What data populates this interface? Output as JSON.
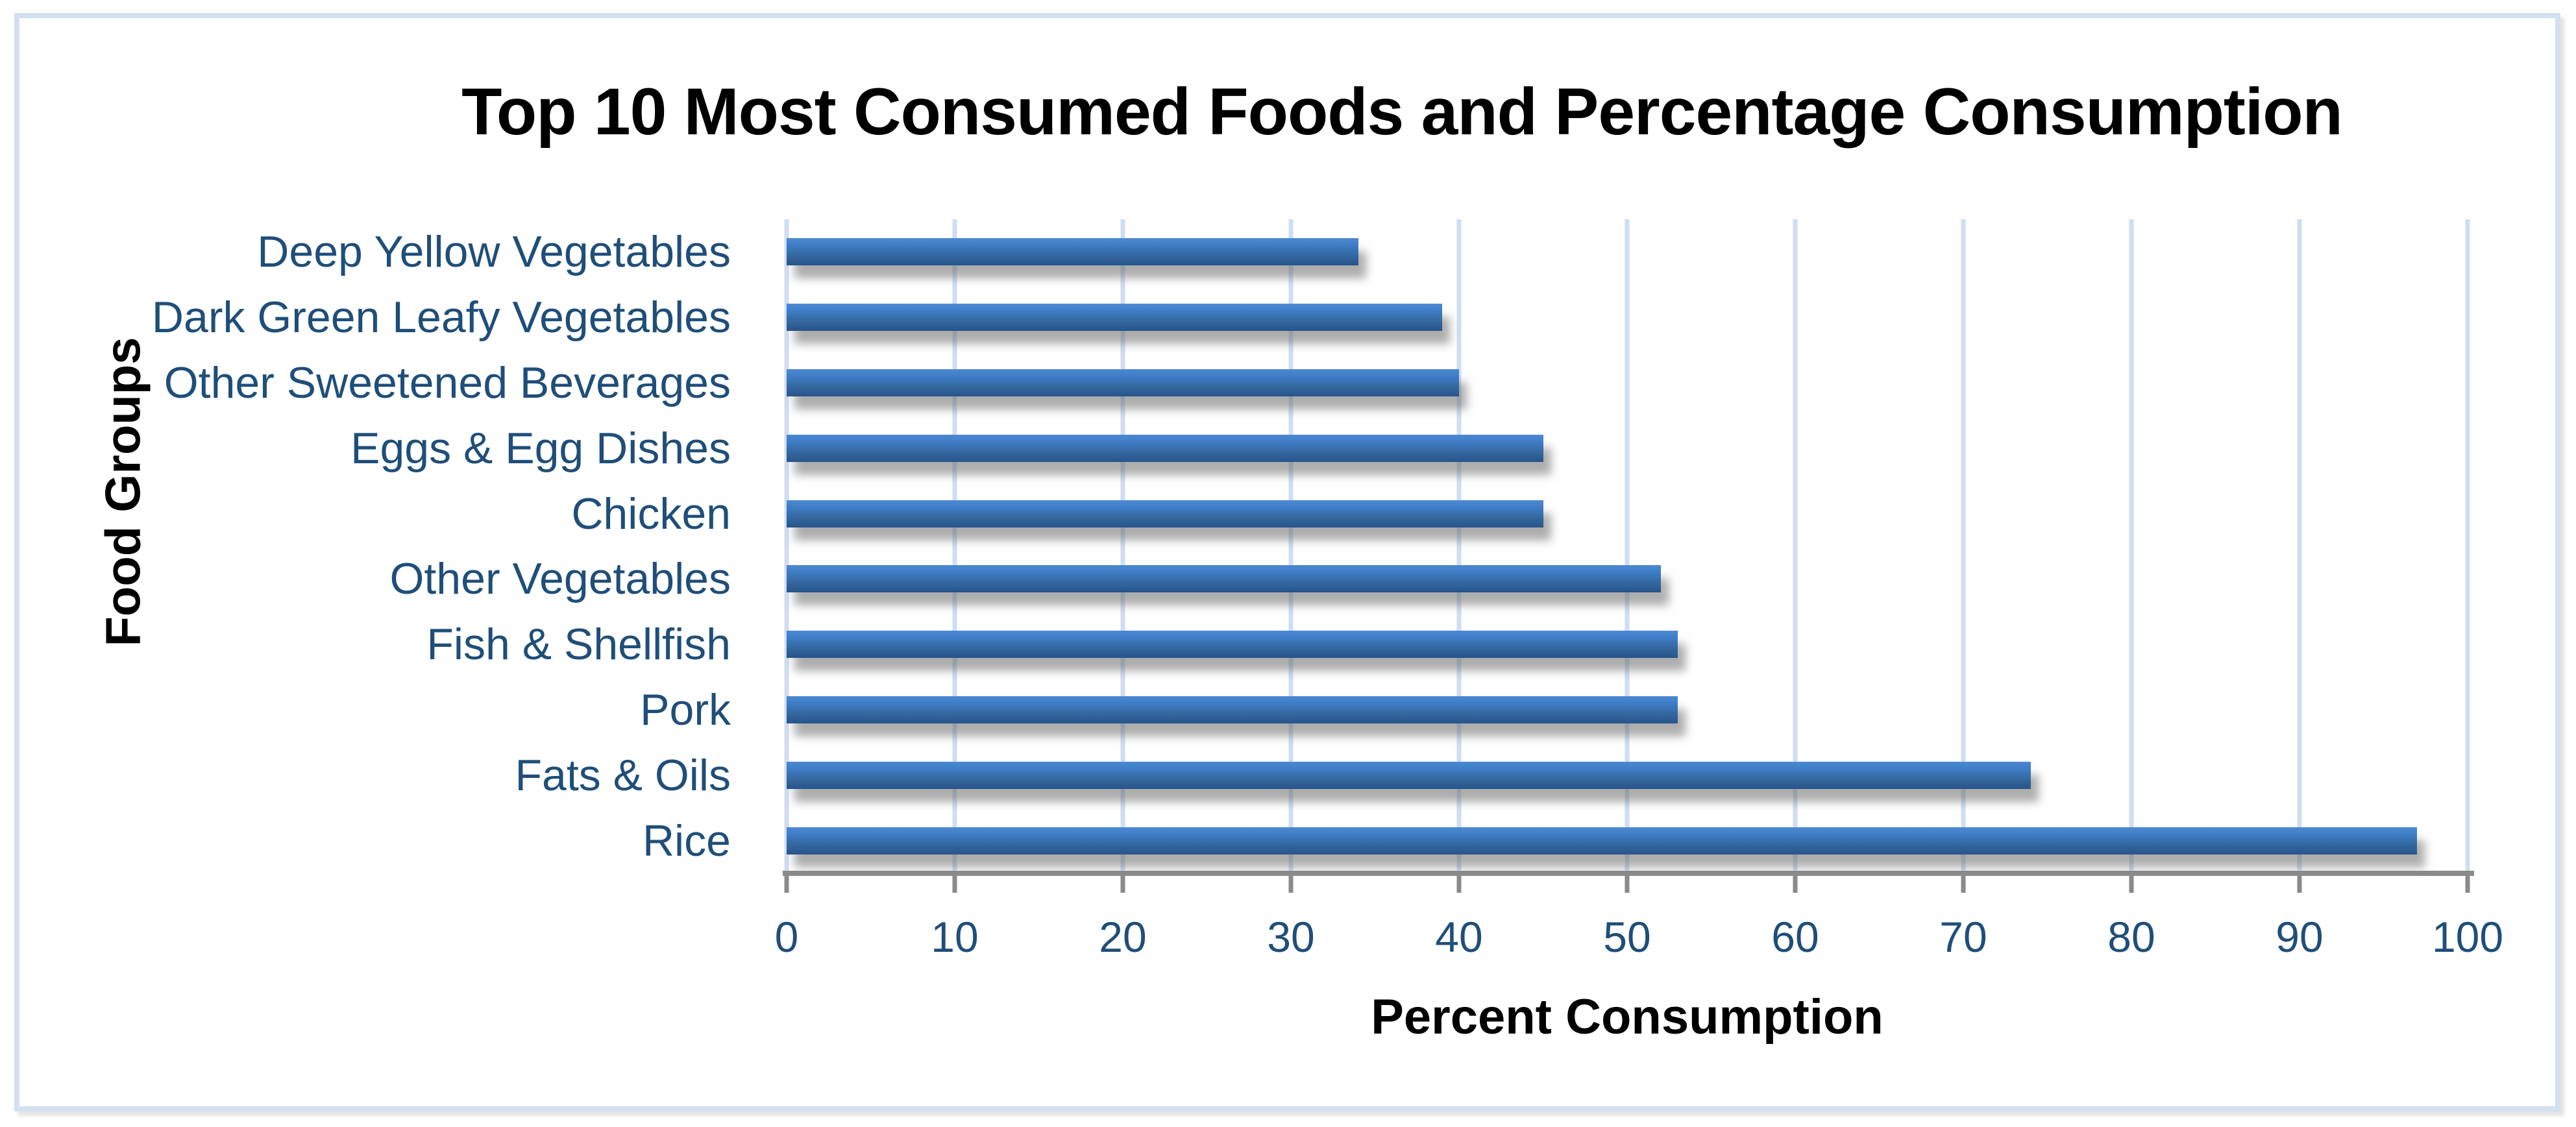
{
  "chart_data": {
    "type": "bar",
    "orientation": "horizontal",
    "title": "Top 10 Most Consumed Foods and Percentage Consumption",
    "xlabel": "Percent Consumption",
    "ylabel": "Food Groups",
    "categories": [
      "Deep Yellow Vegetables",
      "Dark Green Leafy Vegetables",
      "Other Sweetened Beverages",
      "Eggs & Egg Dishes",
      "Chicken",
      "Other Vegetables",
      "Fish & Shellfish",
      "Pork",
      "Fats & Oils",
      "Rice"
    ],
    "values": [
      34,
      39,
      40,
      45,
      45,
      52,
      53,
      53,
      74,
      97
    ],
    "xlim": [
      0,
      100
    ],
    "xticks": [
      0,
      10,
      20,
      30,
      40,
      50,
      60,
      70,
      80,
      90,
      100
    ],
    "grid": true,
    "legend": false,
    "colors": {
      "bar_gradient_top": "#4C89D2",
      "bar_gradient_bottom": "#27548C",
      "axis_label_text": "#1F4E79",
      "gridline": "#CFDEF1",
      "axis_line": "#8A8A8A",
      "canvas_border": "#D3E0F1",
      "title_text": "#000000",
      "background": "#FFFFFF"
    }
  }
}
